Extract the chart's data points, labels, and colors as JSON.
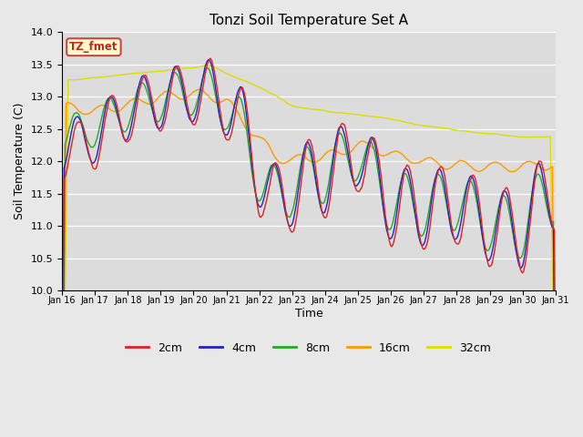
{
  "title": "Tonzi Soil Temperature Set A",
  "xlabel": "Time",
  "ylabel": "Soil Temperature (C)",
  "ylim": [
    10.0,
    14.0
  ],
  "yticks": [
    10.0,
    10.5,
    11.0,
    11.5,
    12.0,
    12.5,
    13.0,
    13.5,
    14.0
  ],
  "colors": {
    "2cm": "#dd2222",
    "4cm": "#2222cc",
    "8cm": "#22aa22",
    "16cm": "#ff9900",
    "32cm": "#dddd00"
  },
  "background_color": "#e8e8e8",
  "axes_background": "#dcdcdc",
  "annotation_text": "TZ_fmet",
  "annotation_bg": "#ffffcc",
  "annotation_border": "#cc4444",
  "annotation_text_color": "#cc2222",
  "n_points": 480,
  "figsize": [
    6.4,
    4.8
  ],
  "dpi": 100
}
